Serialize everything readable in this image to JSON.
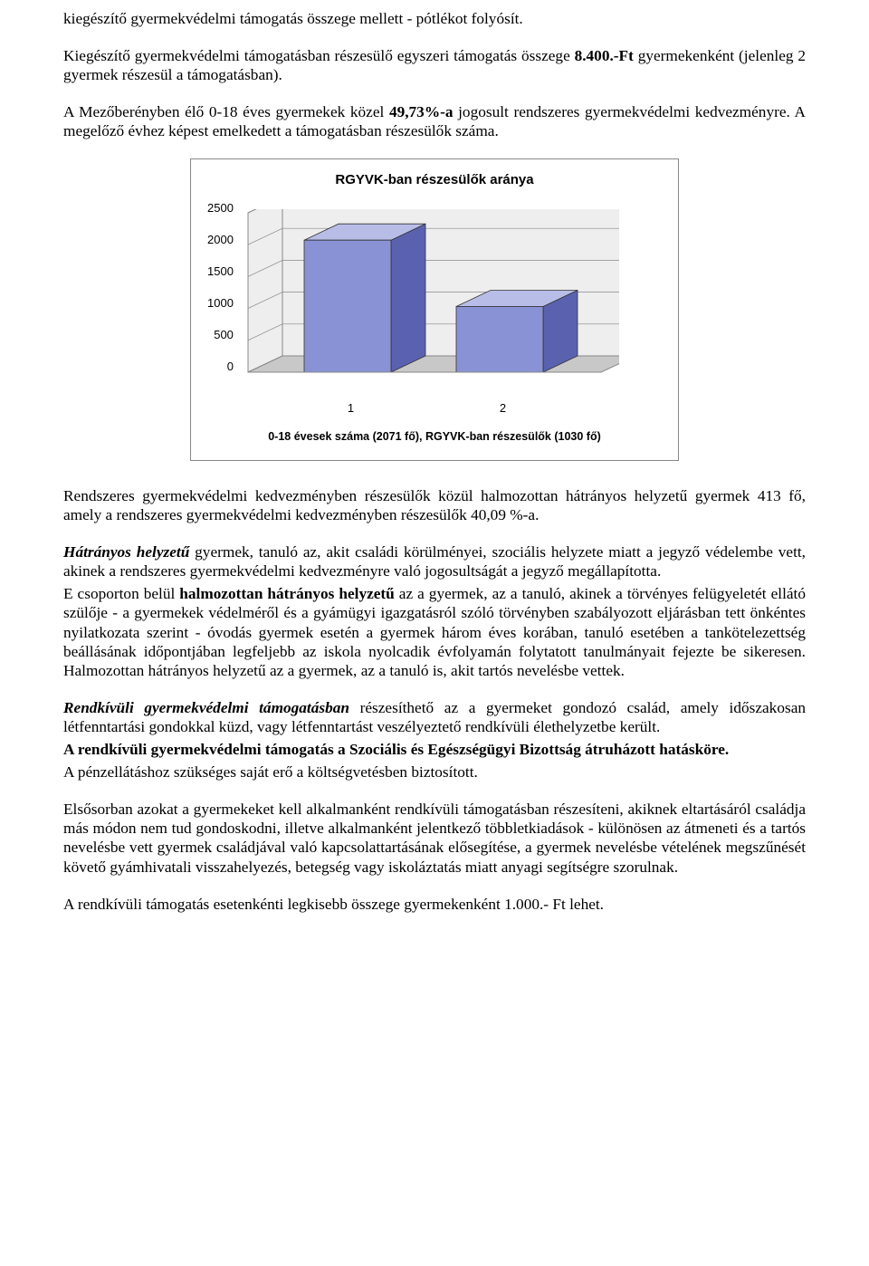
{
  "p1": "kiegészítő gyermekvédelmi támogatás összege mellett - pótlékot folyósít.",
  "p2a": "Kiegészítő gyermekvédelmi támogatásban részesülő egyszeri támogatás összege ",
  "p2b": "8.400.-Ft",
  "p2c": " gyermekenként (jelenleg 2 gyermek részesül a támogatásban).",
  "p3a": "A Mezőberényben élő 0-18 éves gyermekek közel ",
  "p3b": "49,73%-a",
  "p3c": " jogosult rendszeres gyermekvédelmi kedvezményre. A megelőző évhez képest emelkedett a támogatásban részesülők száma.",
  "chart": {
    "type": "bar-3d",
    "title": "RGYVK-ban részesülők aránya",
    "yTicks": [
      "2500",
      "2000",
      "1500",
      "1000",
      "500",
      "0"
    ],
    "ylim": [
      0,
      2500
    ],
    "values": [
      2071,
      1030
    ],
    "xLabels": [
      "1",
      "2"
    ],
    "barFrontColor": "#8a92d6",
    "barSideColor": "#5a62b0",
    "barTopColor": "#b8bde8",
    "floorColor": "#c8c8c8",
    "backWallColor": "#eeeeee",
    "gridColor": "#888888",
    "frameColor": "#888888",
    "caption": "0-18 évesek száma (2071 fő), RGYVK-ban részesülők (1030 fő)"
  },
  "p4": "Rendszeres gyermekvédelmi kedvezményben részesülők közül halmozottan hátrányos helyzetű gyermek 413 fő, amely a rendszeres gyermekvédelmi kedvezményben részesülők 40,09 %-a.",
  "p5_lead": "Hátrányos helyzetű",
  "p5_rest": " gyermek, tanuló az, akit családi körülményei, szociális helyzete miatt a jegyző védelembe vett, akinek a rendszeres gyermekvédelmi kedvezményre való jogosultságát a jegyző megállapította.",
  "p6a": "E csoporton belül ",
  "p6b": "halmozottan hátrányos helyzetű",
  "p6c": " az a gyermek, az a tanuló, akinek a törvényes felügyeletét ellátó szülője - a gyermekek védelméről és a gyámügyi igazgatásról szóló törvényben szabályozott eljárásban tett önkéntes nyilatkozata szerint - óvodás gyermek esetén a gyermek három éves korában, tanuló esetében a tankötelezettség beállásának időpontjában legfeljebb az iskola nyolcadik évfolyamán folytatott tanulmányait fejezte be sikeresen. Halmozottan hátrányos helyzetű az a gyermek, az a tanuló is, akit tartós nevelésbe vettek.",
  "p7_lead": "Rendkívüli gyermekvédelmi támogatásban",
  "p7_rest": " részesíthető az a gyermeket gondozó család, amely időszakosan létfenntartási gondokkal küzd, vagy létfenntartást veszélyeztető rendkívüli élethelyzetbe került.",
  "p8": "A rendkívüli gyermekvédelmi támogatás a Szociális és Egészségügyi Bizottság átruházott hatásköre.",
  "p9": "A pénzellátáshoz szükséges saját erő a költségvetésben biztosított.",
  "p10": "Elsősorban azokat a gyermekeket kell alkalmanként rendkívüli támogatásban részesíteni, akiknek eltartásáról családja más módon nem tud gondoskodni, illetve alkalmanként jelentkező többletkiadások - különösen az átmeneti és a tartós nevelésbe vett gyermek családjával való kapcsolattartásának elősegítése, a gyermek nevelésbe vételének megszűnését követő gyámhivatali visszahelyezés, betegség vagy iskoláztatás miatt anyagi segítségre szorulnak.",
  "p11": "A rendkívüli támogatás esetenkénti legkisebb összege gyermekenként 1.000.- Ft lehet."
}
